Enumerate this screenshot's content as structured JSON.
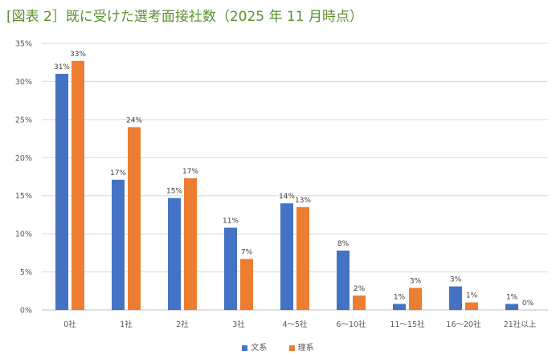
{
  "chart_data": {
    "type": "bar",
    "title": "[図表 2］既に受けた選考面接社数（2025 年 11 月時点）",
    "categories": [
      "0社",
      "1社",
      "2社",
      "3社",
      "4～5社",
      "6～10社",
      "11～15社",
      "16～20社",
      "21社以上"
    ],
    "series": [
      {
        "name": "文系",
        "color": "#4472c4",
        "values": [
          31.0,
          17.1,
          14.7,
          10.8,
          14.0,
          7.8,
          0.8,
          3.1,
          0.8
        ],
        "labels": [
          "31%",
          "17%",
          "15%",
          "11%",
          "14%",
          "8%",
          "1%",
          "3%",
          "1%"
        ]
      },
      {
        "name": "理系",
        "color": "#ed7d31",
        "values": [
          32.7,
          24.0,
          17.3,
          6.7,
          13.5,
          1.9,
          2.9,
          1.0,
          0.0
        ],
        "labels": [
          "33%",
          "24%",
          "17%",
          "7%",
          "13%",
          "2%",
          "3%",
          "1%",
          "0%"
        ]
      }
    ],
    "y_ticks": [
      "0%",
      "5%",
      "10%",
      "15%",
      "20%",
      "25%",
      "30%",
      "35%"
    ],
    "ylim": [
      0,
      35
    ],
    "grid": true,
    "legend_position": "bottom",
    "xlabel": "",
    "ylabel": ""
  }
}
